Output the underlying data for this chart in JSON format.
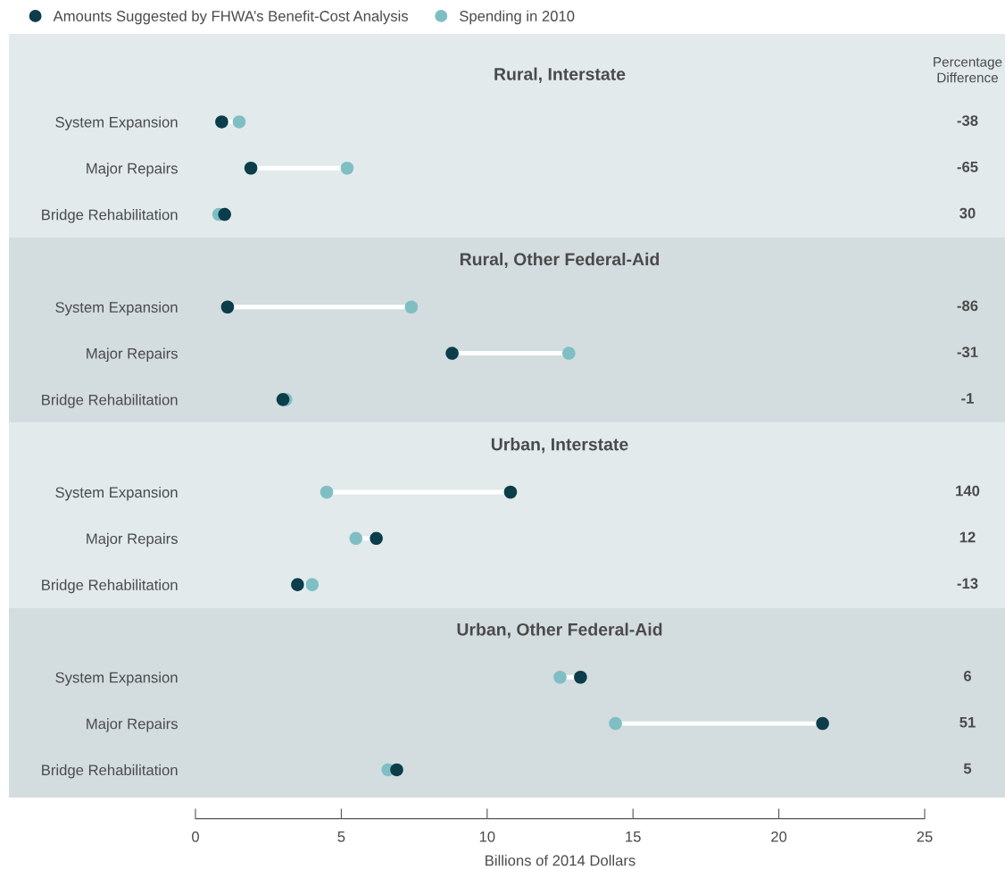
{
  "chart_data": {
    "type": "scatter",
    "orientation": "horizontal",
    "categories": [
      "System Expansion",
      "Major Repairs",
      "Bridge Rehabilitation",
      "System Expansion",
      "Major Repairs",
      "Bridge Rehabilitation",
      "System Expansion",
      "Major Repairs",
      "Bridge Rehabilitation",
      "System Expansion",
      "Major Repairs",
      "Bridge Rehabilitation"
    ],
    "series": [
      {
        "name": "Amounts Suggested by FHWA’s Benefit-Cost Analysis",
        "color": "#0b3d4a",
        "values": [
          0.9,
          1.9,
          1.0,
          1.1,
          8.8,
          3.0,
          10.8,
          6.2,
          3.5,
          13.2,
          21.5,
          6.9
        ]
      },
      {
        "name": "Spending in 2010",
        "color": "#7fbfc4",
        "values": [
          1.5,
          5.2,
          0.8,
          7.4,
          12.8,
          3.1,
          4.5,
          5.5,
          4.0,
          12.5,
          14.4,
          6.6
        ]
      }
    ],
    "xlim": [
      0,
      25
    ],
    "xticks": [
      0,
      5,
      10,
      15,
      20,
      25
    ],
    "xlabel": "Billions of 2014 Dollars",
    "legend": "top left",
    "marker": "circle",
    "annotations": [
      "Percentage\nDifference",
      "-38",
      "-65",
      "30",
      "-86",
      "-31",
      "-1",
      "140",
      "12",
      "-13",
      "6",
      "51",
      "5",
      "Rural, Interstate",
      "Rural, Other Federal-Aid",
      "Urban, Interstate",
      "Urban, Other Federal-Aid"
    ]
  }
}
